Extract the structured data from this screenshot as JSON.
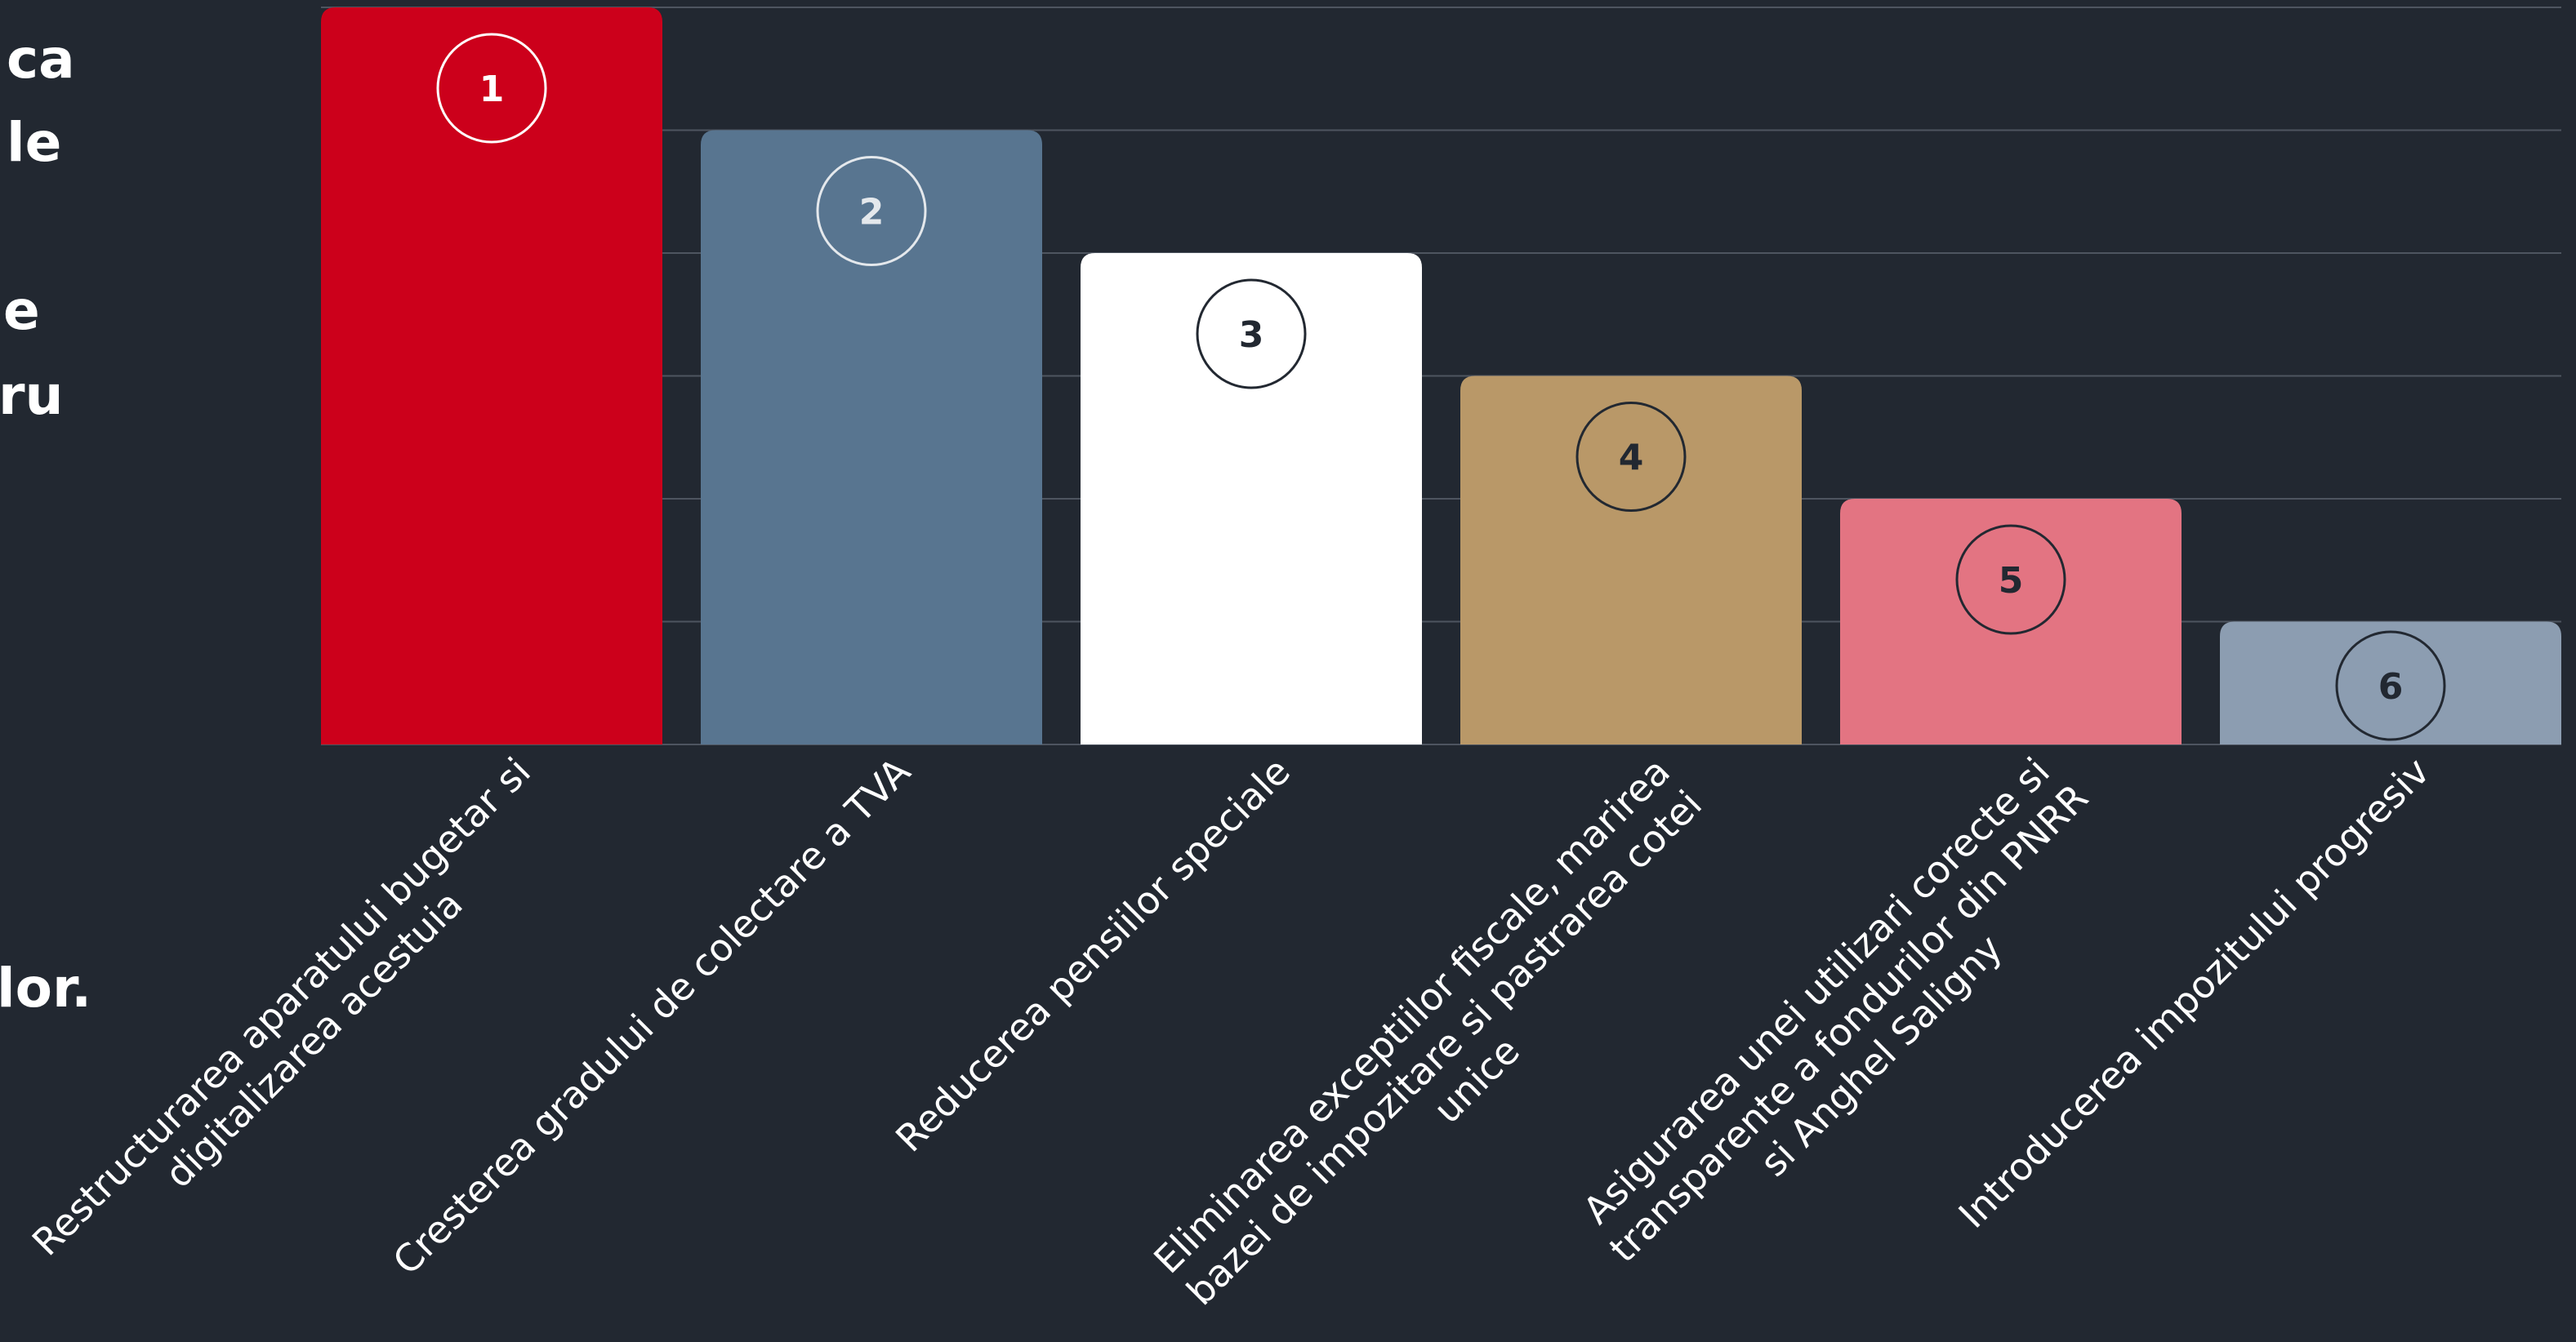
{
  "left_text_fragments": [
    "ca",
    "le",
    "e",
    "ru",
    "lor."
  ],
  "chart_data": {
    "type": "bar",
    "categories": [
      "Restructurarea aparatului bugetar si digitalizarea acestuia",
      "Cresterea gradului de colectare a TVA",
      "Reducerea pensiilor speciale",
      "Eliminarea exceptiilor fiscale, marirea bazei de impozitare si pastrarea cotei unice",
      "Asigurarea unei utilizari corecte si transparente a fondurilor din PNRR si Anghel Saligny",
      "Introducerea impozitului progresiv"
    ],
    "label_lines": [
      [
        "Restructurarea aparatului bugetar si",
        "digitalizarea acestuia"
      ],
      [
        "Cresterea gradului de colectare a TVA"
      ],
      [
        "Reducerea pensiilor speciale"
      ],
      [
        "Eliminarea exceptiilor fiscale, marirea",
        "bazei de impozitare si pastrarea cotei",
        "unice"
      ],
      [
        "Asigurarea unei utilizari corecte si",
        "transparente a fondurilor din PNRR",
        "si Anghel Saligny"
      ],
      [
        "Introducerea impozitului progresiv"
      ]
    ],
    "values": [
      6,
      5,
      4,
      3,
      2,
      1
    ],
    "ranks": [
      "1",
      "2",
      "3",
      "4",
      "5",
      "6"
    ],
    "ylim": [
      0,
      6
    ],
    "grid": true,
    "colors": [
      "#cc001b",
      "#587590",
      "#ffffff",
      "#b99868",
      "#e37482",
      "#8c9db1"
    ],
    "rank_colors": [
      "#ffffff",
      "#e4e8ec",
      "#222831",
      "#222831",
      "#222831",
      "#222831"
    ],
    "background": "#222831",
    "gridline_color": "#4e5560"
  }
}
